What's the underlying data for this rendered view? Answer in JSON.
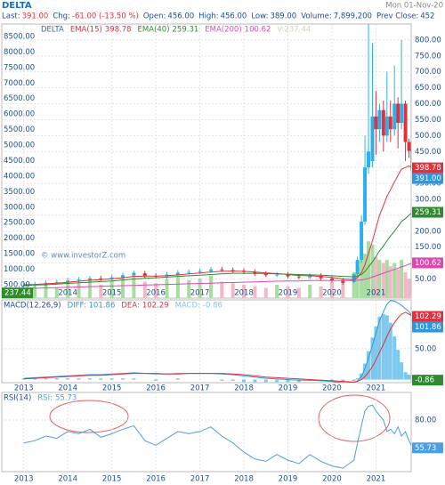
{
  "header": {
    "symbol": "DELTA",
    "date": "Mon 01-Nov-20",
    "quote": [
      {
        "label": "Last:",
        "text": "391.00"
      },
      {
        "label": "Chg:",
        "text": "-61.00 (-13.50 %)"
      },
      {
        "label": "Open:",
        "text": "456.00"
      },
      {
        "label": "High:",
        "text": "456.00"
      },
      {
        "label": "Low:",
        "text": "389.00"
      },
      {
        "label": "Volume:",
        "text": "7,899,200"
      },
      {
        "label": "Prev Close:",
        "text": "452"
      }
    ]
  },
  "chart_data": [
    {
      "type": "candlestick",
      "watermark": "© www.investorZ.com",
      "grid": true,
      "x": [
        2013,
        2013.25,
        2013.5,
        2013.75,
        2014,
        2014.25,
        2014.5,
        2014.75,
        2015,
        2015.25,
        2015.5,
        2015.75,
        2016,
        2016.25,
        2016.5,
        2016.75,
        2017,
        2017.25,
        2017.5,
        2017.75,
        2018,
        2018.25,
        2018.5,
        2018.75,
        2019,
        2019.25,
        2019.5,
        2019.75,
        2020,
        2020.25,
        2020.5,
        2020.58,
        2020.67,
        2020.75,
        2020.83,
        2020.92,
        2021,
        2021.08,
        2021.17,
        2021.25,
        2021.33,
        2021.42,
        2021.5,
        2021.58,
        2021.67,
        2021.75,
        2021.83
      ],
      "xlim": [
        2012.5,
        2021.8
      ],
      "xticks": [
        2013,
        2014,
        2015,
        2016,
        2017,
        2018,
        2019,
        2020,
        2021
      ],
      "ylim": [
        -10,
        850
      ],
      "yticks": [
        {
          "value": 50,
          "label": "50.00"
        },
        {
          "value": 100,
          "label": "100.00"
        },
        {
          "value": 150,
          "label": "150.00"
        },
        {
          "value": 200,
          "label": "200.00"
        },
        {
          "value": 250,
          "label": "250.00"
        },
        {
          "value": 300,
          "label": "300.00"
        },
        {
          "value": 350,
          "label": "350.00"
        },
        {
          "value": 400,
          "label": "400.00"
        },
        {
          "value": 450,
          "label": "450.00"
        },
        {
          "value": 500,
          "label": "500.00"
        },
        {
          "value": 550,
          "label": "550.00"
        },
        {
          "value": 600,
          "label": "600.00"
        },
        {
          "value": 650,
          "label": "650.00"
        },
        {
          "value": 700,
          "label": "700.00"
        },
        {
          "value": 750,
          "label": "750.00"
        },
        {
          "value": 800,
          "label": "800.00"
        }
      ],
      "y2lim": [
        70,
        8900
      ],
      "y2ticks": [
        {
          "value": 500,
          "label": "500.00"
        },
        {
          "value": 1000,
          "label": "1000.00"
        },
        {
          "value": 1500,
          "label": "1500.00"
        },
        {
          "value": 2000,
          "label": "2000.00"
        },
        {
          "value": 2500,
          "label": "2500.00"
        },
        {
          "value": 3000,
          "label": "3000.00"
        },
        {
          "value": 3500,
          "label": "3500.00"
        },
        {
          "value": 4000,
          "label": "4000.00"
        },
        {
          "value": 4500,
          "label": "4500.00"
        },
        {
          "value": 5000,
          "label": "5000.00"
        },
        {
          "value": 5500,
          "label": "5500.00"
        },
        {
          "value": 6000,
          "label": "6000.00"
        },
        {
          "value": 6500,
          "label": "6500.00"
        },
        {
          "value": 7000,
          "label": "7000.00"
        },
        {
          "value": 7500,
          "label": "7500.00"
        },
        {
          "value": 8000,
          "label": "8000.00"
        },
        {
          "value": 8500,
          "label": "8500.00"
        }
      ],
      "ohlc": {
        "name": "DELTA",
        "color": "#1a6fc0",
        "up_color": "#2bb0ee",
        "down_color": "#e0323c",
        "open": [
          28,
          30,
          33,
          38,
          40,
          45,
          48,
          52,
          50,
          55,
          62,
          68,
          60,
          58,
          64,
          70,
          72,
          75,
          80,
          78,
          76,
          72,
          66,
          62,
          64,
          58,
          55,
          60,
          52,
          45,
          40,
          65,
          110,
          230,
          400,
          420,
          560,
          520,
          580,
          500,
          560,
          520,
          600,
          540,
          600,
          480,
          456
        ],
        "high": [
          38,
          41,
          46,
          48,
          53,
          56,
          60,
          60,
          63,
          70,
          76,
          76,
          68,
          72,
          78,
          80,
          83,
          88,
          88,
          86,
          84,
          80,
          74,
          72,
          72,
          66,
          68,
          68,
          60,
          53,
          70,
          120,
          250,
          500,
          850,
          790,
          640,
          600,
          610,
          700,
          610,
          720,
          620,
          800,
          610,
          490,
          456
        ],
        "low": [
          22,
          24,
          27,
          32,
          34,
          39,
          42,
          44,
          44,
          49,
          56,
          54,
          52,
          52,
          58,
          64,
          66,
          69,
          72,
          70,
          66,
          60,
          56,
          56,
          52,
          49,
          49,
          46,
          39,
          32,
          38,
          60,
          100,
          220,
          380,
          400,
          440,
          480,
          450,
          480,
          480,
          500,
          460,
          520,
          420,
          430,
          389
        ],
        "close": [
          30,
          33,
          38,
          40,
          45,
          48,
          52,
          50,
          55,
          62,
          68,
          60,
          58,
          64,
          70,
          72,
          75,
          80,
          78,
          76,
          72,
          66,
          62,
          64,
          58,
          55,
          60,
          52,
          45,
          38,
          65,
          110,
          230,
          400,
          450,
          560,
          520,
          580,
          500,
          560,
          520,
          600,
          540,
          600,
          480,
          452,
          391
        ]
      },
      "price_labels": [
        {
          "value": 391,
          "label": "391.00",
          "color": "#2f97e0"
        }
      ],
      "series": [
        {
          "name": "EMA(15)",
          "color": "#e0323c",
          "values": [
            32,
            33,
            35,
            37,
            40,
            43,
            46,
            48,
            51,
            54,
            58,
            59,
            59,
            60,
            63,
            66,
            69,
            72,
            74,
            75,
            74,
            72,
            69,
            67,
            64,
            61,
            60,
            58,
            55,
            50,
            48,
            55,
            70,
            95,
            130,
            170,
            210,
            250,
            280,
            310,
            330,
            355,
            375,
            395,
            400,
            405,
            398.78
          ]
        },
        {
          "name": "EMA(40)",
          "color": "#2e8b2e",
          "values": [
            30,
            31,
            32,
            34,
            36,
            38,
            40,
            42,
            44,
            47,
            50,
            52,
            54,
            56,
            58,
            60,
            62,
            64,
            66,
            68,
            68,
            68,
            67,
            66,
            65,
            64,
            63,
            62,
            60,
            58,
            57,
            59,
            64,
            74,
            88,
            104,
            120,
            138,
            153,
            170,
            185,
            200,
            215,
            230,
            240,
            250,
            259.31
          ]
        },
        {
          "name": "EMA(200)",
          "color": "#e048b0",
          "values": [
            20,
            21,
            22,
            23,
            24,
            25,
            26,
            27,
            28,
            29,
            30,
            31,
            32,
            33,
            34,
            35,
            36,
            37,
            38,
            39,
            40,
            41,
            42,
            43,
            44,
            44,
            45,
            45,
            45,
            45,
            45,
            46,
            47,
            49,
            52,
            56,
            60,
            64,
            68,
            72,
            76,
            80,
            84,
            88,
            92,
            96,
            100.62
          ]
        }
      ],
      "volume": {
        "name": "V:",
        "axis": "y2",
        "color": "#c9d9a2",
        "label_color": "#2e8b2e",
        "up_color": "#a9dca0",
        "down_color": "#f2b8c8",
        "values": [
          400,
          450,
          500,
          420,
          600,
          550,
          700,
          500,
          650,
          800,
          900,
          600,
          550,
          700,
          750,
          650,
          700,
          800,
          600,
          550,
          500,
          450,
          400,
          500,
          450,
          400,
          500,
          450,
          600,
          700,
          900,
          1100,
          1300,
          1500,
          1900,
          1800,
          1400,
          1300,
          1200,
          1300,
          1100,
          1200,
          1000,
          1300,
          900,
          700,
          237.44
        ]
      }
    },
    {
      "type": "macd",
      "title": "MACD(12,26,9)",
      "grid": true,
      "x": [
        2013,
        2013.25,
        2013.5,
        2013.75,
        2014,
        2014.25,
        2014.5,
        2014.75,
        2015,
        2015.25,
        2015.5,
        2015.75,
        2016,
        2016.25,
        2016.5,
        2016.75,
        2017,
        2017.25,
        2017.5,
        2017.75,
        2018,
        2018.25,
        2018.5,
        2018.75,
        2019,
        2019.25,
        2019.5,
        2019.75,
        2020,
        2020.25,
        2020.5,
        2020.58,
        2020.67,
        2020.75,
        2020.83,
        2020.92,
        2021,
        2021.08,
        2021.17,
        2021.25,
        2021.33,
        2021.42,
        2021.5,
        2021.58,
        2021.67,
        2021.75,
        2021.83
      ],
      "xlim": [
        2012.5,
        2021.8
      ],
      "xticks": [
        2013,
        2014,
        2015,
        2016,
        2017,
        2018,
        2019,
        2020,
        2021
      ],
      "ylim": [
        -5,
        129
      ],
      "yticks": [
        {
          "value": 50,
          "label": "50.00"
        }
      ],
      "series": [
        {
          "name": "DIFF:",
          "color": "#2f97e0",
          "values": [
            2,
            3,
            4,
            5,
            6,
            7,
            8,
            8,
            9,
            10,
            11,
            10,
            9,
            9,
            10,
            10,
            10,
            10,
            9,
            8,
            6,
            4,
            2,
            1,
            0,
            -1,
            -1,
            -2,
            -3,
            -5,
            -5,
            -2,
            5,
            18,
            35,
            55,
            75,
            95,
            110,
            122,
            128,
            127,
            124,
            120,
            115,
            110,
            101.86
          ]
        },
        {
          "name": "DEA:",
          "color": "#e0323c",
          "values": [
            1,
            2,
            3,
            4,
            5,
            6,
            7,
            7,
            8,
            9,
            10,
            10,
            10,
            9,
            9,
            10,
            10,
            10,
            10,
            9,
            8,
            6,
            4,
            3,
            2,
            1,
            0,
            -1,
            -2,
            -3,
            -4,
            -3,
            0,
            5,
            12,
            21,
            32,
            44,
            57,
            70,
            82,
            92,
            100,
            106,
            109,
            106,
            102.29
          ]
        },
        {
          "name": "MACD:",
          "style": "bar",
          "color": "#7cc8ee",
          "label_color": "#2e8b2e",
          "values": [
            2,
            2,
            2,
            2,
            2,
            2,
            2,
            2,
            2,
            2,
            2,
            0,
            -2,
            0,
            2,
            0,
            0,
            0,
            -2,
            -2,
            -4,
            -4,
            -4,
            -4,
            -4,
            -4,
            -2,
            -2,
            -2,
            -4,
            -2,
            2,
            10,
            26,
            46,
            68,
            86,
            102,
            106,
            104,
            92,
            70,
            48,
            28,
            12,
            8,
            -0.86
          ]
        }
      ]
    },
    {
      "type": "line",
      "title": "RSI(14)",
      "grid": true,
      "x": [
        2013,
        2013.25,
        2013.5,
        2013.75,
        2014,
        2014.25,
        2014.5,
        2014.75,
        2015,
        2015.25,
        2015.5,
        2015.75,
        2016,
        2016.25,
        2016.5,
        2016.75,
        2017,
        2017.25,
        2017.5,
        2017.75,
        2018,
        2018.25,
        2018.5,
        2018.75,
        2019,
        2019.25,
        2019.5,
        2019.75,
        2020,
        2020.25,
        2020.5,
        2020.58,
        2020.67,
        2020.75,
        2020.83,
        2020.92,
        2021,
        2021.08,
        2021.17,
        2021.25,
        2021.33,
        2021.42,
        2021.5,
        2021.58,
        2021.67,
        2021.75,
        2021.83
      ],
      "xlim": [
        2012.5,
        2021.8
      ],
      "xticks": [
        2013,
        2014,
        2015,
        2016,
        2017,
        2018,
        2019,
        2020,
        2021
      ],
      "ylim": [
        35,
        104
      ],
      "yticks": [
        {
          "value": 80,
          "label": "80.00"
        }
      ],
      "series": [
        {
          "name": "RSI:",
          "color": "#4a9fe6",
          "values": [
            60,
            62,
            66,
            64,
            70,
            68,
            72,
            65,
            68,
            72,
            75,
            62,
            58,
            64,
            70,
            68,
            70,
            74,
            66,
            60,
            52,
            46,
            44,
            50,
            45,
            42,
            50,
            44,
            40,
            38,
            45,
            60,
            75,
            88,
            92,
            93,
            88,
            84,
            80,
            70,
            72,
            68,
            74,
            66,
            70,
            62,
            55.73
          ]
        }
      ]
    }
  ]
}
